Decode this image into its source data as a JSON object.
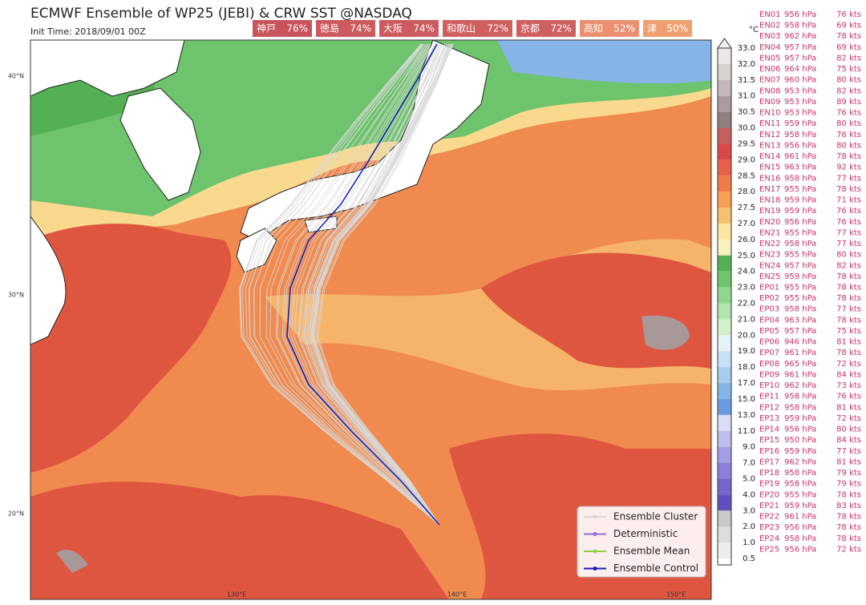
{
  "header": {
    "title": "ECMWF Ensemble of WP25 (JEBI) & CRW SST @NASDAQ",
    "init_time": "Init Time: 2018/09/01 00Z"
  },
  "cities": [
    {
      "name": "神戸",
      "prob": "76%",
      "color": "#c9545c"
    },
    {
      "name": "徳島",
      "prob": "74%",
      "color": "#cc5a5e"
    },
    {
      "name": "大阪",
      "prob": "74%",
      "color": "#cc5a5e"
    },
    {
      "name": "和歌山",
      "prob": "72%",
      "color": "#d06060"
    },
    {
      "name": "京都",
      "prob": "72%",
      "color": "#d06060"
    },
    {
      "name": "高知",
      "prob": "52%",
      "color": "#ea9070"
    },
    {
      "name": "津",
      "prob": "50%",
      "color": "#f0a070"
    }
  ],
  "axes": {
    "lat_labels": [
      "40°N",
      "30°N",
      "20°N"
    ],
    "lon_labels": [
      "130°E",
      "140°E",
      "150°E"
    ]
  },
  "colorbar": {
    "unit": "°C",
    "labels": [
      "33.0",
      "32.0",
      "31.5",
      "31.0",
      "30.5",
      "30.0",
      "29.5",
      "29.0",
      "28.5",
      "28.0",
      "27.5",
      "27.0",
      "26.0",
      "25.0",
      "24.0",
      "23.0",
      "22.0",
      "21.0",
      "20.0",
      "19.0",
      "18.0",
      "17.0",
      "15.0",
      "13.0",
      "11.0",
      "9.0",
      "7.0",
      "5.0",
      "4.0",
      "3.0",
      "2.0",
      "1.0",
      "0.5"
    ],
    "colors": [
      "#ede6e6",
      "#d9d0d0",
      "#c4b8b8",
      "#aa9c9c",
      "#8f7f7f",
      "#c65e5e",
      "#d84848",
      "#e8604a",
      "#f07c4a",
      "#f4a050",
      "#f7c070",
      "#fbe6a0",
      "#f6f2c0",
      "#54b054",
      "#6ec46c",
      "#92d68e",
      "#b4e4ae",
      "#d2f0cc",
      "#e6f2f8",
      "#c8e0f4",
      "#a8ccee",
      "#86b4e6",
      "#6c9ae0",
      "#dcdcf4",
      "#c0bcec",
      "#a49ce4",
      "#8a80da",
      "#7466cc",
      "#6050be",
      "#c8c8c8",
      "#dcdcdc",
      "#ececec"
    ]
  },
  "members": [
    [
      "EN01",
      "956 hPa",
      "76 kts"
    ],
    [
      "EN02",
      "958 hPa",
      "69 kts"
    ],
    [
      "EN03",
      "962 hPa",
      "78 kts"
    ],
    [
      "EN04",
      "957 hPa",
      "69 kts"
    ],
    [
      "EN05",
      "957 hPa",
      "82 kts"
    ],
    [
      "EN06",
      "964 hPa",
      "75 kts"
    ],
    [
      "EN07",
      "960 hPa",
      "80 kts"
    ],
    [
      "EN08",
      "953 hPa",
      "82 kts"
    ],
    [
      "EN09",
      "953 hPa",
      "89 kts"
    ],
    [
      "EN10",
      "953 hPa",
      "76 kts"
    ],
    [
      "EN11",
      "959 hPa",
      "80 kts"
    ],
    [
      "EN12",
      "958 hPa",
      "76 kts"
    ],
    [
      "EN13",
      "956 hPa",
      "80 kts"
    ],
    [
      "EN14",
      "961 hPa",
      "78 kts"
    ],
    [
      "EN15",
      "963 hPa",
      "92 kts"
    ],
    [
      "EN16",
      "958 hPa",
      "77 kts"
    ],
    [
      "EN17",
      "955 hPa",
      "78 kts"
    ],
    [
      "EN18",
      "959 hPa",
      "71 kts"
    ],
    [
      "EN19",
      "959 hPa",
      "76 kts"
    ],
    [
      "EN20",
      "956 hPa",
      "76 kts"
    ],
    [
      "EN21",
      "955 hPa",
      "77 kts"
    ],
    [
      "EN22",
      "958 hPa",
      "77 kts"
    ],
    [
      "EN23",
      "955 hPa",
      "80 kts"
    ],
    [
      "EN24",
      "957 hPa",
      "82 kts"
    ],
    [
      "EN25",
      "959 hPa",
      "78 kts"
    ],
    [
      "EP01",
      "955 hPa",
      "78 kts"
    ],
    [
      "EP02",
      "955 hPa",
      "78 kts"
    ],
    [
      "EP03",
      "958 hPa",
      "77 kts"
    ],
    [
      "EP04",
      "963 hPa",
      "78 kts"
    ],
    [
      "EP05",
      "957 hPa",
      "75 kts"
    ],
    [
      "EP06",
      "946 hPa",
      "81 kts"
    ],
    [
      "EP07",
      "961 hPa",
      "78 kts"
    ],
    [
      "EP08",
      "965 hPa",
      "72 kts"
    ],
    [
      "EP09",
      "961 hPa",
      "84 kts"
    ],
    [
      "EP10",
      "962 hPa",
      "73 kts"
    ],
    [
      "EP11",
      "958 hPa",
      "76 kts"
    ],
    [
      "EP12",
      "958 hPa",
      "81 kts"
    ],
    [
      "EP13",
      "959 hPa",
      "72 kts"
    ],
    [
      "EP14",
      "956 hPa",
      "80 kts"
    ],
    [
      "EP15",
      "950 hPa",
      "84 kts"
    ],
    [
      "EP16",
      "959 hPa",
      "77 kts"
    ],
    [
      "EP17",
      "962 hPa",
      "81 kts"
    ],
    [
      "EP18",
      "958 hPa",
      "79 kts"
    ],
    [
      "EP19",
      "958 hPa",
      "79 kts"
    ],
    [
      "EP20",
      "955 hPa",
      "78 kts"
    ],
    [
      "EP21",
      "959 hPa",
      "83 kts"
    ],
    [
      "EP22",
      "961 hPa",
      "78 kts"
    ],
    [
      "EP23",
      "956 hPa",
      "78 kts"
    ],
    [
      "EP24",
      "958 hPa",
      "78 kts"
    ],
    [
      "EP25",
      "956 hPa",
      "72 kts"
    ]
  ],
  "legend": [
    {
      "label": "Ensemble Cluster",
      "color": "#d8d8d8"
    },
    {
      "label": "Deterministic",
      "color": "#9070d8"
    },
    {
      "label": "Ensemble Mean",
      "color": "#90d040"
    },
    {
      "label": "Ensemble Control",
      "color": "#1020b0"
    }
  ]
}
